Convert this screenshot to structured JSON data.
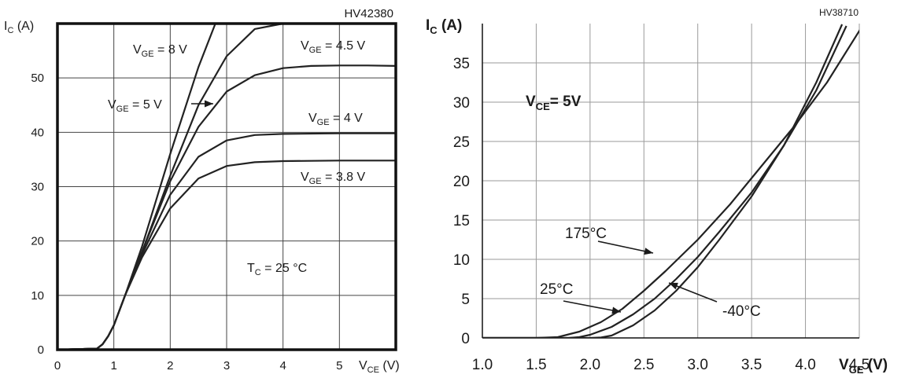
{
  "chart_data": [
    {
      "type": "line",
      "code": "HV42380",
      "ylabel_main": "I",
      "ylabel_sub": "C",
      "ylabel_unit": "(A)",
      "xlabel_main": "V",
      "xlabel_sub": "CE",
      "xlabel_unit": "(V)",
      "xlim": [
        0,
        6
      ],
      "ylim": [
        0,
        60
      ],
      "xticks": [
        "0",
        "1",
        "2",
        "3",
        "4",
        "5"
      ],
      "yticks": [
        "0",
        "10",
        "20",
        "30",
        "40",
        "50"
      ],
      "grid": true,
      "annotation": {
        "main": "T",
        "sub": "C",
        "rest": "= 25 °C"
      },
      "series": [
        {
          "name_main": "V",
          "name_sub": "GE",
          "name_rest": "= 8 V",
          "x": [
            0,
            0.7,
            0.8,
            0.9,
            1.0,
            1.2,
            1.5,
            2.0,
            2.5,
            2.8
          ],
          "y": [
            0,
            0.2,
            1,
            2.5,
            4.5,
            10,
            19,
            36,
            52,
            60
          ]
        },
        {
          "name_main": "V",
          "name_sub": "GE",
          "name_rest": "= 5 V",
          "x": [
            0,
            0.7,
            0.8,
            0.9,
            1.0,
            1.2,
            1.5,
            2.0,
            2.5,
            3.0,
            3.5,
            4.0
          ],
          "y": [
            0,
            0.2,
            1,
            2.5,
            4.5,
            10,
            18,
            32,
            45,
            54,
            59,
            60
          ]
        },
        {
          "name_main": "V",
          "name_sub": "GE",
          "name_rest": "= 4.5 V",
          "x": [
            0,
            0.7,
            0.8,
            0.9,
            1.0,
            1.2,
            1.5,
            2.0,
            2.5,
            3.0,
            3.5,
            4.0,
            4.5,
            5.0,
            5.5,
            6.0
          ],
          "y": [
            0,
            0.2,
            1,
            2.5,
            4.5,
            10,
            18,
            31,
            41,
            47.5,
            50.5,
            51.8,
            52.2,
            52.3,
            52.3,
            52.2
          ]
        },
        {
          "name_main": "V",
          "name_sub": "GE",
          "name_rest": "= 4 V",
          "x": [
            0,
            0.7,
            0.8,
            0.9,
            1.0,
            1.2,
            1.5,
            2.0,
            2.5,
            3.0,
            3.5,
            4.0,
            5.0,
            6.0
          ],
          "y": [
            0,
            0.2,
            1,
            2.5,
            4.5,
            10,
            17.5,
            28.5,
            35.5,
            38.5,
            39.5,
            39.7,
            39.8,
            39.8
          ]
        },
        {
          "name_main": "V",
          "name_sub": "GE",
          "name_rest": "= 3.8 V",
          "x": [
            0,
            0.7,
            0.8,
            0.9,
            1.0,
            1.2,
            1.5,
            2.0,
            2.5,
            3.0,
            3.5,
            4.0,
            5.0,
            6.0
          ],
          "y": [
            0,
            0.2,
            1,
            2.5,
            4.5,
            10,
            17,
            26,
            31.5,
            33.8,
            34.5,
            34.7,
            34.8,
            34.8
          ]
        }
      ]
    },
    {
      "type": "line",
      "code": "HV38710",
      "ylabel_main": "I",
      "ylabel_sub": "C",
      "ylabel_unit": "(A)",
      "xlabel_main": "V",
      "xlabel_sub": "GE",
      "xlabel_unit": "(V)",
      "xlim": [
        1.0,
        4.5
      ],
      "ylim": [
        0,
        40
      ],
      "xticks": [
        "1.0",
        "1.5",
        "2.0",
        "2.5",
        "3.0",
        "3.5",
        "4.0",
        "4.5"
      ],
      "yticks": [
        "0",
        "5",
        "10",
        "15",
        "20",
        "25",
        "30",
        "35"
      ],
      "grid": true,
      "annotation": {
        "main": "V",
        "sub": "CE",
        "rest": "= 5V"
      },
      "series": [
        {
          "name": "175°C",
          "x": [
            1.0,
            1.5,
            1.7,
            1.9,
            2.1,
            2.3,
            2.5,
            2.7,
            3.0,
            3.3,
            3.6,
            3.9,
            4.2,
            4.52
          ],
          "y": [
            0,
            0,
            0.1,
            0.8,
            2,
            3.7,
            6,
            8.5,
            12.5,
            17,
            22,
            27,
            32.5,
            39.5
          ]
        },
        {
          "name": "25°C",
          "x": [
            1.0,
            1.8,
            1.9,
            2.0,
            2.2,
            2.4,
            2.6,
            2.8,
            3.0,
            3.2,
            3.5,
            3.8,
            4.1,
            4.38
          ],
          "y": [
            0,
            0,
            0.1,
            0.4,
            1.4,
            3,
            5,
            7.5,
            10.3,
            13.5,
            18.5,
            24.5,
            31.5,
            39.7
          ]
        },
        {
          "name": "-40°C",
          "x": [
            1.0,
            2.0,
            2.1,
            2.2,
            2.4,
            2.6,
            2.8,
            3.0,
            3.2,
            3.5,
            3.8,
            4.1,
            4.34
          ],
          "y": [
            0,
            0,
            0.05,
            0.3,
            1.6,
            3.5,
            6,
            9,
            12.5,
            18,
            24.5,
            32.5,
            39.9
          ]
        }
      ]
    }
  ]
}
